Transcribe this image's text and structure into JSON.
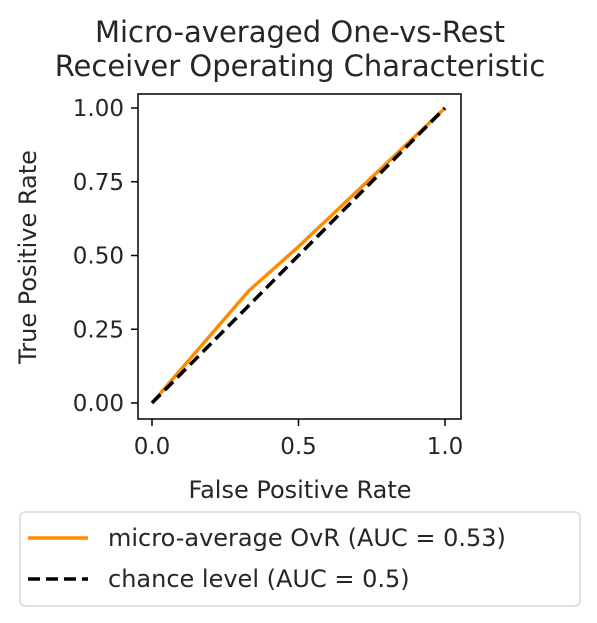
{
  "chart_data": {
    "type": "line",
    "title": [
      "Micro-averaged One-vs-Rest",
      "Receiver Operating Characteristic"
    ],
    "xlabel": "False Positive Rate",
    "ylabel": "True Positive Rate",
    "xlim": [
      0.0,
      1.0
    ],
    "ylim": [
      0.0,
      1.0
    ],
    "x_ticks": [
      0.0,
      0.5,
      1.0
    ],
    "x_tick_labels": [
      "0.0",
      "0.5",
      "1.0"
    ],
    "y_ticks": [
      0.0,
      0.25,
      0.5,
      0.75,
      1.0
    ],
    "y_tick_labels": [
      "0.00",
      "0.25",
      "0.50",
      "0.75",
      "1.00"
    ],
    "grid": false,
    "legend": {
      "placement": "below",
      "entries": [
        "micro-average OvR (AUC = 0.53)",
        "chance level (AUC = 0.5)"
      ]
    },
    "series": [
      {
        "name": "micro-average OvR (AUC = 0.53)",
        "color": "#ff8c00",
        "line_style": "solid",
        "x": [
          0.0,
          0.33,
          0.5,
          1.0
        ],
        "y": [
          0.0,
          0.38,
          0.53,
          1.0
        ]
      },
      {
        "name": "chance level (AUC = 0.5)",
        "color": "#000000",
        "line_style": "dashed",
        "x": [
          0.0,
          1.0
        ],
        "y": [
          0.0,
          1.0
        ]
      }
    ]
  }
}
